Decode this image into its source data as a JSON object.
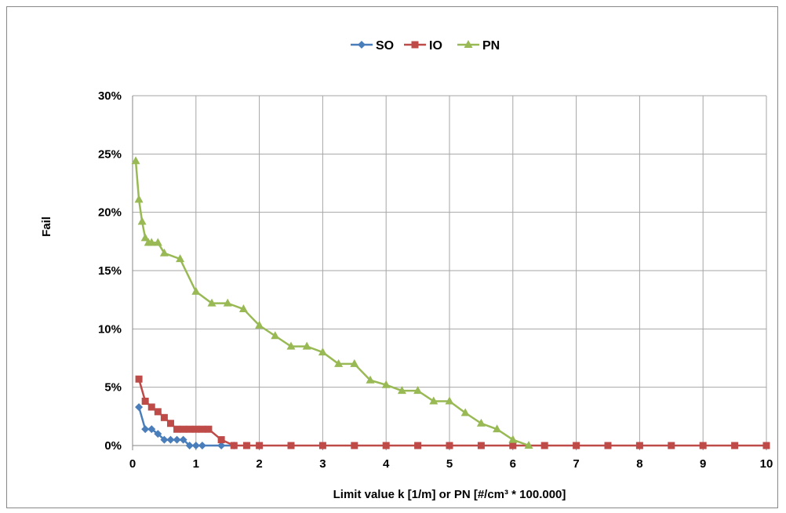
{
  "chart_data": {
    "type": "line",
    "title": "",
    "xlabel": "Limit value k [1/m] or PN [#/cm³ * 100.000]",
    "ylabel": "Fail",
    "xlim": [
      0,
      10
    ],
    "ylim": [
      0,
      0.3
    ],
    "x_ticks": [
      "0",
      "1",
      "2",
      "3",
      "4",
      "5",
      "6",
      "7",
      "8",
      "9",
      "10"
    ],
    "y_ticks": [
      "0%",
      "5%",
      "10%",
      "15%",
      "20%",
      "25%",
      "30%"
    ],
    "grid": true,
    "legend_position": "top-center",
    "series": [
      {
        "name": "SO",
        "color": "#4a7ebb",
        "marker": "diamond",
        "points": [
          [
            0.1,
            0.033
          ],
          [
            0.2,
            0.014
          ],
          [
            0.3,
            0.014
          ],
          [
            0.4,
            0.01
          ],
          [
            0.5,
            0.005
          ],
          [
            0.6,
            0.005
          ],
          [
            0.7,
            0.005
          ],
          [
            0.8,
            0.005
          ],
          [
            0.9,
            0.0
          ],
          [
            1.0,
            0.0
          ],
          [
            1.1,
            0.0
          ],
          [
            1.4,
            0.0
          ],
          [
            1.6,
            0.0
          ]
        ]
      },
      {
        "name": "IO",
        "color": "#be4b48",
        "marker": "square",
        "points": [
          [
            0.1,
            0.057
          ],
          [
            0.2,
            0.038
          ],
          [
            0.3,
            0.033
          ],
          [
            0.4,
            0.029
          ],
          [
            0.5,
            0.024
          ],
          [
            0.6,
            0.019
          ],
          [
            0.7,
            0.014
          ],
          [
            0.8,
            0.014
          ],
          [
            0.9,
            0.014
          ],
          [
            1.0,
            0.014
          ],
          [
            1.1,
            0.014
          ],
          [
            1.2,
            0.014
          ],
          [
            1.4,
            0.005
          ],
          [
            1.6,
            0.0
          ],
          [
            1.8,
            0.0
          ],
          [
            2.0,
            0.0
          ],
          [
            2.5,
            0.0
          ],
          [
            3.0,
            0.0
          ],
          [
            3.5,
            0.0
          ],
          [
            4.0,
            0.0
          ],
          [
            4.5,
            0.0
          ],
          [
            5.0,
            0.0
          ],
          [
            5.5,
            0.0
          ],
          [
            6.0,
            0.0
          ],
          [
            6.5,
            0.0
          ],
          [
            7.0,
            0.0
          ],
          [
            7.5,
            0.0
          ],
          [
            8.0,
            0.0
          ],
          [
            8.5,
            0.0
          ],
          [
            9.0,
            0.0
          ],
          [
            9.5,
            0.0
          ],
          [
            10.0,
            0.0
          ]
        ]
      },
      {
        "name": "PN",
        "color": "#98b954",
        "marker": "triangle",
        "points": [
          [
            0.05,
            0.244
          ],
          [
            0.1,
            0.211
          ],
          [
            0.15,
            0.192
          ],
          [
            0.2,
            0.178
          ],
          [
            0.25,
            0.174
          ],
          [
            0.3,
            0.174
          ],
          [
            0.4,
            0.174
          ],
          [
            0.5,
            0.165
          ],
          [
            0.75,
            0.16
          ],
          [
            1.0,
            0.132
          ],
          [
            1.25,
            0.122
          ],
          [
            1.5,
            0.122
          ],
          [
            1.75,
            0.117
          ],
          [
            2.0,
            0.103
          ],
          [
            2.25,
            0.094
          ],
          [
            2.5,
            0.085
          ],
          [
            2.75,
            0.085
          ],
          [
            3.0,
            0.08
          ],
          [
            3.25,
            0.07
          ],
          [
            3.5,
            0.07
          ],
          [
            3.75,
            0.056
          ],
          [
            4.0,
            0.052
          ],
          [
            4.25,
            0.047
          ],
          [
            4.5,
            0.047
          ],
          [
            4.75,
            0.038
          ],
          [
            5.0,
            0.038
          ],
          [
            5.25,
            0.028
          ],
          [
            5.5,
            0.019
          ],
          [
            5.75,
            0.014
          ],
          [
            6.0,
            0.005
          ],
          [
            6.25,
            0.0
          ]
        ]
      }
    ]
  }
}
